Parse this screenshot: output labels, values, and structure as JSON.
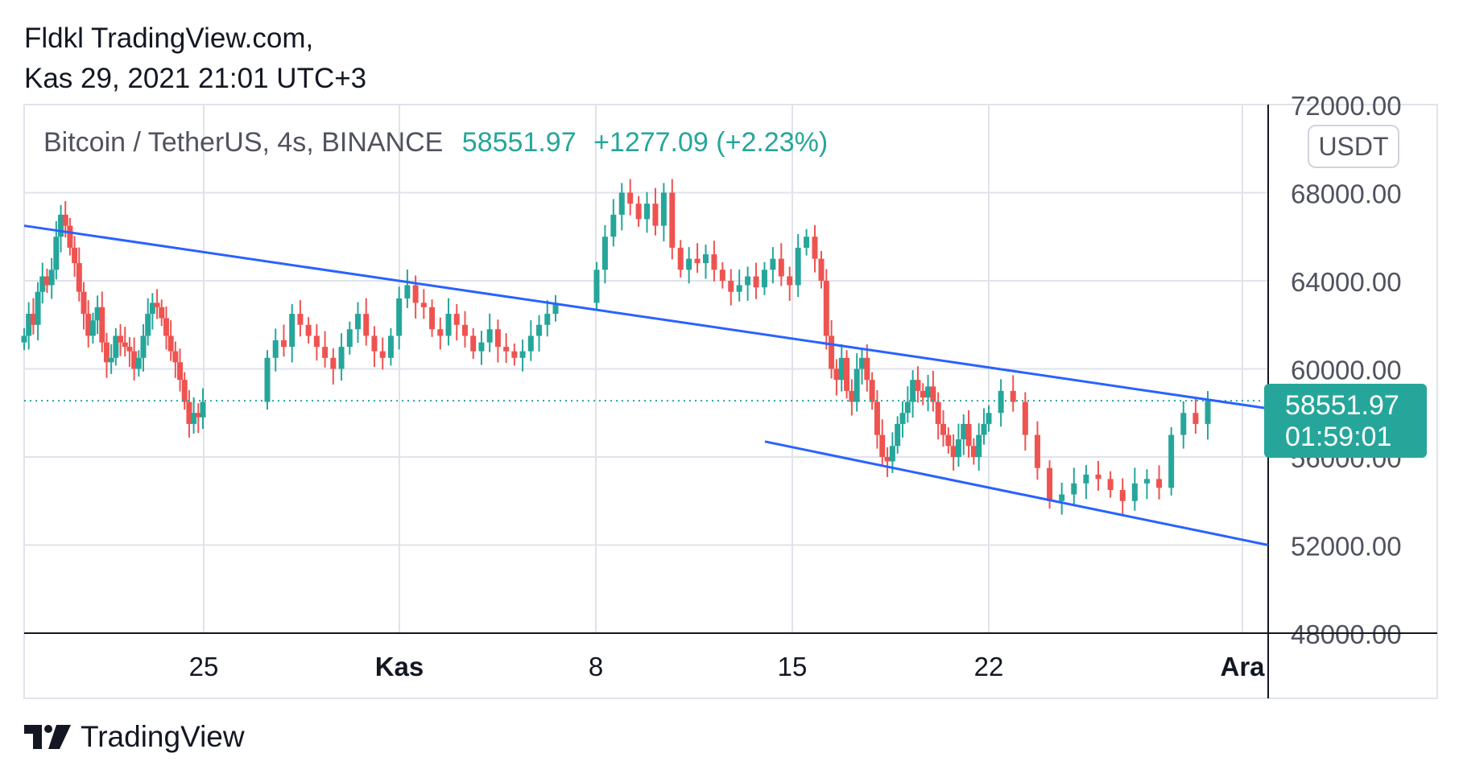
{
  "header": {
    "line1": "Fldkl TradingView.com,",
    "line2": "Kas 29, 2021 21:01 UTC+3"
  },
  "legend": {
    "symbol": "Bitcoin / TetherUS, 4s, BINANCE",
    "price": "58551.97",
    "change": "+1277.09 (+2.23%)"
  },
  "currency_label": "USDT",
  "price_tag": {
    "price": "58551.97",
    "countdown": "01:59:01"
  },
  "footer": {
    "brand": "TradingView",
    "logo_icon": "tradingview-logo-icon"
  },
  "colors": {
    "up": "#26a69a",
    "down": "#ef5350",
    "trendline": "#2962ff",
    "grid": "#e0e3eb",
    "axis": "#131722"
  },
  "chart_data": {
    "type": "candlestick",
    "symbol": "BTCUSDT",
    "exchange": "BINANCE",
    "interval": "4h",
    "ylim": [
      48000,
      72000
    ],
    "y_ticks": [
      "72000.00",
      "68000.00",
      "64000.00",
      "60000.00",
      "56000.00",
      "52000.00",
      "48000.00"
    ],
    "x_labels": [
      "25",
      "Kas",
      "8",
      "15",
      "22",
      "Ara"
    ],
    "x_label_bold": [
      "Kas",
      "Ara"
    ],
    "last_price": 58551.97,
    "series": [
      {
        "segment": "Oct 21 - Oct 24",
        "points": [
          61500,
          62500,
          62000,
          63500,
          64200,
          63800,
          64500,
          66000,
          67000,
          66500,
          65500,
          64800,
          63500,
          62500,
          61500,
          62200,
          62800,
          61200,
          60300,
          60500,
          61500,
          61200,
          61000,
          60800,
          60000,
          60500,
          61500,
          62500,
          63000,
          62800,
          62300,
          61500,
          60800,
          60300,
          59500,
          58500,
          57500,
          58000,
          57800,
          58500
        ]
      },
      {
        "segment": "Oct 28 - Nov 7",
        "points": [
          60500,
          61300,
          61000,
          62500,
          62000,
          61500,
          61000,
          60500,
          60000,
          61000,
          61800,
          62500,
          61500,
          60800,
          60500,
          61500,
          63200,
          63800,
          63000,
          62800,
          61800,
          61500,
          62500,
          62000,
          61500,
          60800,
          61200,
          61800,
          61000,
          60800,
          60500,
          60800,
          61500,
          62000,
          62500,
          63000
        ]
      },
      {
        "segment": "Nov 8 - Nov 15",
        "points": [
          64500,
          66000,
          67000,
          68000,
          67500,
          66800,
          67500,
          66500,
          68000,
          65500,
          64500,
          65000,
          64800,
          65200,
          64500,
          64000,
          63500,
          63800,
          64200,
          63700,
          64500,
          65000,
          64200,
          63800,
          65500,
          66000,
          65000
        ]
      },
      {
        "segment": "Nov 16 - Nov 22",
        "points": [
          64000,
          61500,
          60000,
          59500,
          60500,
          59000,
          58500,
          60000,
          60500,
          59500,
          58500,
          57000,
          56000,
          55800,
          56500,
          57500,
          58000,
          58500,
          59500,
          59000,
          58700,
          59200,
          58500,
          57500,
          57000,
          56500,
          56000,
          56800,
          57500,
          56500,
          56000,
          57000,
          57500
        ]
      },
      {
        "segment": "Nov 23 - Nov 29",
        "points": [
          58000,
          59000,
          58500,
          57000,
          55500,
          54000,
          54300,
          54800,
          55200,
          55000,
          54500,
          54000,
          54800,
          55000,
          54600,
          57000,
          58000,
          57500,
          58551.97
        ]
      }
    ],
    "trendlines": [
      {
        "name": "upper",
        "from": {
          "x": "Oct 21",
          "y": 66500
        },
        "to": {
          "x": "Dec 1",
          "y": 58200
        }
      },
      {
        "name": "lower",
        "from": {
          "x": "Nov 14",
          "y": 56700
        },
        "to": {
          "x": "Dec 1",
          "y": 52000
        }
      }
    ]
  }
}
